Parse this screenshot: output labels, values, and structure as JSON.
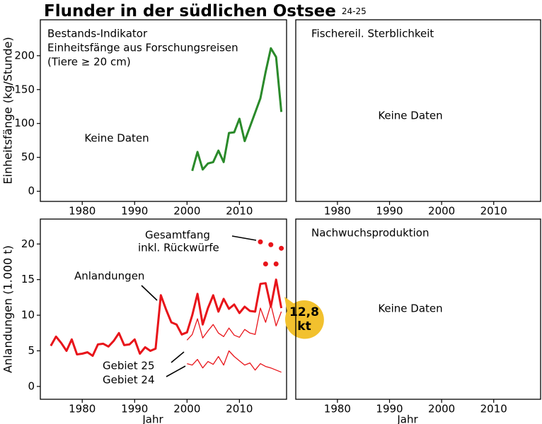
{
  "title": "Flunder in der südlichen Ostsee",
  "subtitle": "24-25",
  "chart_data": [
    {
      "type": "line",
      "title": [
        "Bestands-Indikator",
        "Einheitsfänge aus Forschungsreisen",
        "(Tiere ≥ 20 cm)"
      ],
      "note": "Keine Daten",
      "ylabel": "Einheitsfänge (kg/Stunde)",
      "xlim": [
        1972,
        2019
      ],
      "xticks": [
        1980,
        1990,
        2000,
        2010
      ],
      "ylim": [
        -15,
        253
      ],
      "yticks": [
        0,
        50,
        100,
        150,
        200
      ],
      "series": [
        {
          "color": "#2a8a2a",
          "width": 3,
          "x": [
            2001,
            2002,
            2003,
            2004,
            2005,
            2006,
            2007,
            2008,
            2009,
            2010,
            2011,
            2012,
            2013,
            2014,
            2015,
            2016,
            2017,
            2018
          ],
          "values": [
            30,
            58,
            32,
            41,
            43,
            60,
            43,
            86,
            87,
            107,
            74,
            95,
            116,
            137,
            176,
            211,
            198,
            117
          ]
        }
      ]
    },
    {
      "type": "line",
      "title": [
        "Fischereil. Sterblichkeit"
      ],
      "note": "Keine Daten",
      "xlim": [
        1972,
        2019
      ],
      "xticks": [
        1980,
        1990,
        2000,
        2010
      ],
      "series": []
    },
    {
      "type": "line",
      "ylabel": "Anlandungen (1.000 t)",
      "xlabel": "Jahr",
      "xlim": [
        1972,
        2019
      ],
      "xticks": [
        1980,
        1990,
        2000,
        2010
      ],
      "ylim": [
        -1.8,
        23.5
      ],
      "yticks": [
        0,
        5,
        10,
        15,
        20
      ],
      "series": [
        {
          "name": [
            "Anlandungen"
          ],
          "color": "#e8141a",
          "width": 3,
          "x": [
            1974,
            1975,
            1976,
            1977,
            1978,
            1979,
            1980,
            1981,
            1982,
            1983,
            1984,
            1985,
            1986,
            1987,
            1988,
            1989,
            1990,
            1991,
            1992,
            1993,
            1994,
            1995,
            1996,
            1997,
            1998,
            1999,
            2000,
            2001,
            2002,
            2003,
            2004,
            2005,
            2006,
            2007,
            2008,
            2009,
            2010,
            2011,
            2012,
            2013,
            2014,
            2015,
            2016,
            2017,
            2018
          ],
          "values": [
            5.7,
            7.0,
            6.1,
            5.0,
            6.6,
            4.5,
            4.6,
            4.8,
            4.3,
            5.9,
            6.0,
            5.6,
            6.4,
            7.5,
            5.8,
            5.9,
            6.6,
            4.6,
            5.5,
            5.0,
            5.3,
            12.8,
            10.8,
            9.0,
            8.7,
            7.3,
            7.6,
            10.0,
            13.0,
            8.7,
            11.0,
            12.8,
            10.5,
            12.3,
            10.9,
            11.5,
            10.3,
            11.2,
            10.6,
            10.5,
            14.4,
            14.5,
            11.2,
            15.0,
            11.0
          ]
        },
        {
          "name": [
            "Gebiet 25"
          ],
          "color": "#e8141a",
          "width": 1.3,
          "x": [
            2000,
            2001,
            2002,
            2003,
            2004,
            2005,
            2006,
            2007,
            2008,
            2009,
            2010,
            2011,
            2012,
            2013,
            2014,
            2015,
            2016,
            2017,
            2018
          ],
          "values": [
            6.5,
            7.3,
            9.5,
            6.8,
            7.8,
            8.7,
            7.5,
            7.0,
            8.2,
            7.2,
            6.9,
            8.0,
            7.5,
            7.3,
            11.0,
            9.0,
            11.5,
            8.5,
            10.5
          ]
        },
        {
          "name": [
            "Gebiet 24"
          ],
          "color": "#e8141a",
          "width": 1.3,
          "x": [
            2000,
            2001,
            2002,
            2003,
            2004,
            2005,
            2006,
            2007,
            2008,
            2009,
            2010,
            2011,
            2012,
            2013,
            2014,
            2015,
            2016,
            2017,
            2018
          ],
          "values": [
            3.2,
            3.0,
            3.8,
            2.6,
            3.5,
            3.1,
            4.2,
            3.0,
            5.0,
            4.2,
            3.6,
            3.0,
            3.3,
            2.3,
            3.2,
            2.8,
            2.6,
            2.3,
            2.0
          ]
        },
        {
          "name": [
            "Gesamtfang",
            "inkl. Rückwürfe"
          ],
          "type": "scatter",
          "color": "#e8141a",
          "x": [
            2014,
            2015,
            2016,
            2017,
            2018
          ],
          "values": [
            20.3,
            17.2,
            19.9,
            17.2,
            19.4
          ]
        }
      ],
      "callout": {
        "lines": [
          "12,8",
          "kt"
        ],
        "color": "#f2c12e"
      }
    },
    {
      "type": "line",
      "title": [
        "Nachwuchsproduktion"
      ],
      "note": "Keine Daten",
      "xlabel": "Jahr",
      "xlim": [
        1972,
        2019
      ],
      "xticks": [
        1980,
        1990,
        2000,
        2010
      ],
      "series": []
    }
  ]
}
